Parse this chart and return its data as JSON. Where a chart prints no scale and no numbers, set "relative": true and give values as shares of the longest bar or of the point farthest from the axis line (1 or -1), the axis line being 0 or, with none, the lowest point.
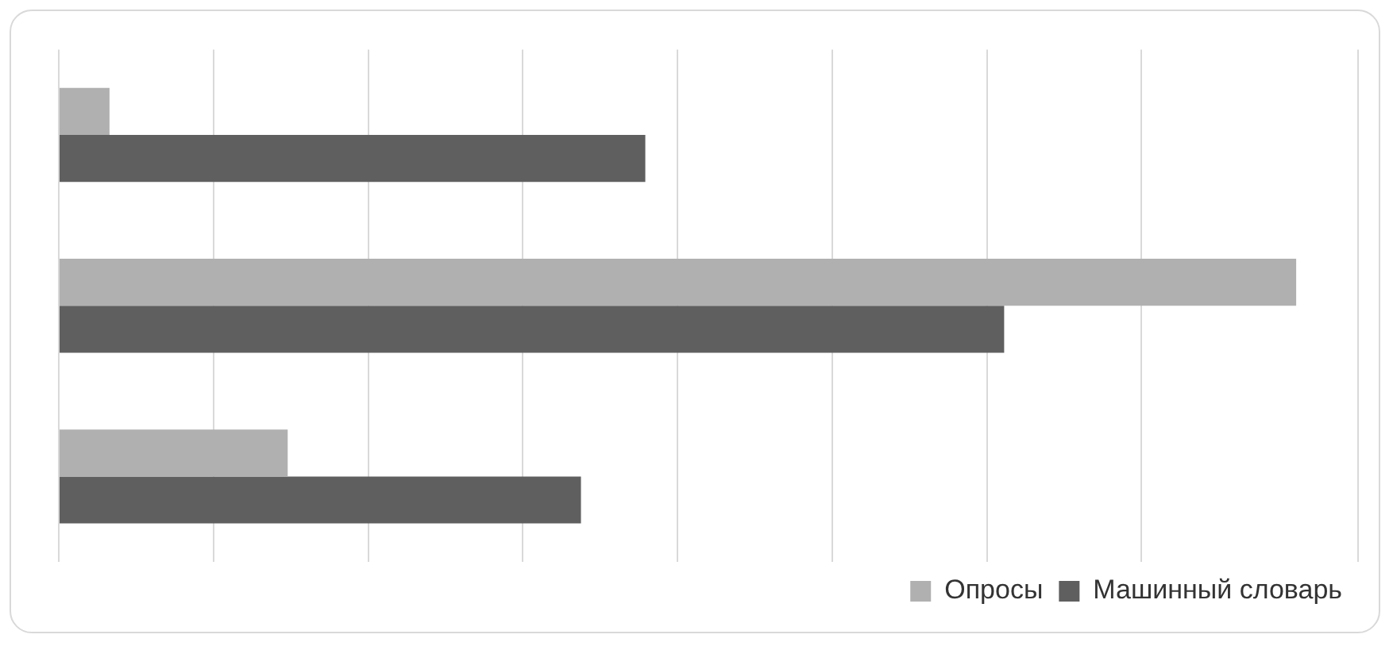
{
  "chart_data": {
    "type": "bar",
    "orientation": "horizontal",
    "relative": true,
    "categories": [
      null,
      null,
      null
    ],
    "series": [
      {
        "name": "Опросы",
        "color": "#b0b0b0",
        "values": [
          0.041,
          1,
          0.185
        ]
      },
      {
        "name": "Машинный словарь",
        "color": "#5f5f5f",
        "values": [
          0.474,
          0.764,
          0.422
        ]
      }
    ],
    "grid": "x",
    "legend": "bottom right"
  }
}
